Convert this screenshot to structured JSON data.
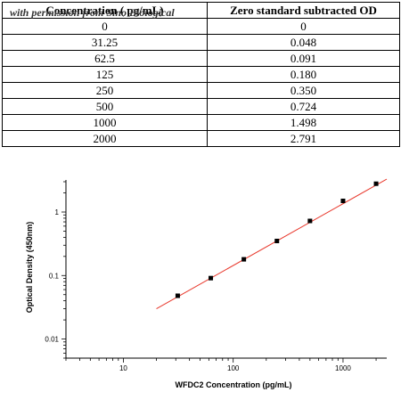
{
  "watermark": "with permission from Sino Biological",
  "table": {
    "headers": [
      "Concentration ( pg/mL)",
      "Zero standard subtracted OD"
    ],
    "rows": [
      [
        "0",
        "0"
      ],
      [
        "31.25",
        "0.048"
      ],
      [
        "62.5",
        "0.091"
      ],
      [
        "125",
        "0.180"
      ],
      [
        "250",
        "0.350"
      ],
      [
        "500",
        "0.724"
      ],
      [
        "1000",
        "1.498"
      ],
      [
        "2000",
        "2.791"
      ]
    ]
  },
  "chart_data": {
    "type": "scatter",
    "xlabel": "WFDC2 Concentration (pg/mL)",
    "ylabel": "Optical Density (450nm)",
    "xscale": "log",
    "yscale": "log",
    "xlim": [
      3,
      2500
    ],
    "ylim": [
      0.005,
      3.2
    ],
    "xticks": [
      10,
      100,
      1000
    ],
    "xtick_labels": [
      "10",
      "100",
      "1000"
    ],
    "yticks": [
      0.01,
      0.1,
      1
    ],
    "ytick_labels": [
      "0.01",
      "0.1",
      "1"
    ],
    "grid": false,
    "series": [
      {
        "x": [
          31.25,
          62.5,
          125,
          250,
          500,
          1000,
          2000
        ],
        "y": [
          0.048,
          0.091,
          0.18,
          0.35,
          0.724,
          1.498,
          2.791
        ]
      }
    ],
    "fit": {
      "x": [
        20,
        2500
      ],
      "y": [
        0.03,
        3.3
      ]
    },
    "colors": {
      "points": "#000000",
      "fit_line": "#e8382c",
      "axis": "#000000"
    }
  }
}
